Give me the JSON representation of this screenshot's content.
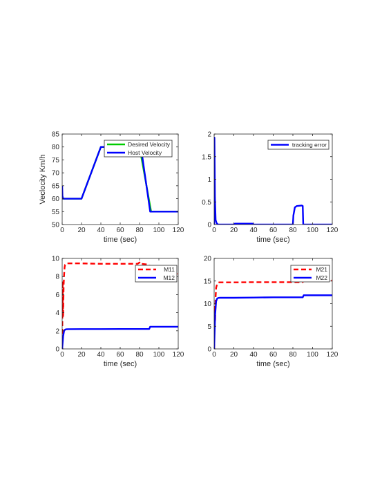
{
  "chart_data": [
    {
      "type": "line",
      "title": "",
      "xlabel": "time (sec)",
      "ylabel": "Veclocity Km/h",
      "xlim": [
        0,
        120
      ],
      "ylim": [
        50,
        85
      ],
      "xticks": [
        0,
        20,
        40,
        60,
        80,
        100,
        120
      ],
      "yticks": [
        50,
        55,
        60,
        65,
        70,
        75,
        80,
        85
      ],
      "grid": false,
      "legend_position": "top-right",
      "series": [
        {
          "name": "Desired Velocity",
          "color": "#00cc00",
          "style": "solid",
          "x": [
            0,
            20,
            40,
            43,
            80,
            92,
            120
          ],
          "y": [
            60,
            60,
            80,
            80,
            80,
            55,
            55
          ]
        },
        {
          "name": "Host Velocity",
          "color": "#0000ff",
          "style": "solid",
          "x": [
            0,
            0.3,
            1,
            2,
            20,
            40,
            43,
            80,
            82,
            91,
            120
          ],
          "y": [
            65,
            61,
            60,
            60,
            60,
            80,
            80,
            80,
            78.5,
            55,
            55
          ]
        }
      ]
    },
    {
      "type": "line",
      "title": "",
      "xlabel": "time (sec)",
      "ylabel": "",
      "xlim": [
        0,
        120
      ],
      "ylim": [
        0,
        2
      ],
      "xticks": [
        0,
        20,
        40,
        60,
        80,
        100,
        120
      ],
      "yticks": [
        0,
        0.5,
        1,
        1.5,
        2
      ],
      "grid": false,
      "legend_position": "top-right",
      "series": [
        {
          "name": "tracking error",
          "color": "#0000ff",
          "style": "solid",
          "x": [
            0,
            0.3,
            0.8,
            1.5,
            2.5,
            4,
            20,
            21,
            39,
            40,
            80,
            80.5,
            82,
            84,
            89,
            90,
            90.5,
            120
          ],
          "y": [
            0,
            1.92,
            0.6,
            0.1,
            0.03,
            0,
            0,
            0.02,
            0.02,
            0,
            0,
            0.2,
            0.38,
            0.41,
            0.42,
            0.41,
            0,
            0
          ]
        }
      ]
    },
    {
      "type": "line",
      "title": "",
      "xlabel": "time (sec)",
      "ylabel": "",
      "xlim": [
        0,
        120
      ],
      "ylim": [
        0,
        10
      ],
      "xticks": [
        0,
        20,
        40,
        60,
        80,
        100,
        120
      ],
      "yticks": [
        0,
        2,
        4,
        6,
        8,
        10
      ],
      "grid": false,
      "legend_position": "top-right",
      "series": [
        {
          "name": "M11",
          "color": "#ff0000",
          "style": "dashed",
          "x": [
            0,
            0.5,
            1,
            1.5,
            2,
            2.5,
            3,
            4,
            5,
            20,
            40,
            60,
            78,
            80,
            81,
            82,
            90,
            91,
            100,
            120
          ],
          "y": [
            0,
            7.5,
            3.5,
            7,
            8.2,
            9,
            9.3,
            9.42,
            9.45,
            9.45,
            9.4,
            9.4,
            9.4,
            9.55,
            9.35,
            9.4,
            9.3,
            8.4,
            8.35,
            8.3
          ]
        },
        {
          "name": "M12",
          "color": "#0000ff",
          "style": "solid",
          "x": [
            0,
            1,
            2,
            3,
            4,
            6,
            20,
            40,
            60,
            80,
            90,
            91,
            100,
            120
          ],
          "y": [
            0,
            1.4,
            2.0,
            2.13,
            2.17,
            2.18,
            2.19,
            2.19,
            2.2,
            2.2,
            2.2,
            2.45,
            2.45,
            2.45
          ]
        }
      ]
    },
    {
      "type": "line",
      "title": "",
      "xlabel": "time (sec)",
      "ylabel": "",
      "xlim": [
        0,
        120
      ],
      "ylim": [
        0,
        20
      ],
      "xticks": [
        0,
        20,
        40,
        60,
        80,
        100,
        120
      ],
      "yticks": [
        0,
        5,
        10,
        15,
        20
      ],
      "grid": false,
      "legend_position": "top-right",
      "series": [
        {
          "name": "M21",
          "color": "#ff0000",
          "style": "dashed",
          "x": [
            0,
            0.5,
            1,
            1.5,
            2,
            3,
            4,
            5,
            20,
            40,
            60,
            80,
            90,
            91,
            100,
            120
          ],
          "y": [
            0,
            9.5,
            6,
            11.5,
            13.5,
            14.3,
            14.6,
            14.7,
            14.7,
            14.75,
            14.75,
            14.75,
            14.75,
            15.2,
            15.15,
            15.1
          ]
        },
        {
          "name": "M22",
          "color": "#0000ff",
          "style": "solid",
          "x": [
            0,
            1,
            2,
            3,
            4,
            6,
            20,
            40,
            60,
            80,
            90,
            91,
            100,
            120
          ],
          "y": [
            0,
            7.5,
            10.5,
            11.1,
            11.25,
            11.3,
            11.3,
            11.35,
            11.4,
            11.4,
            11.4,
            11.85,
            11.85,
            11.85
          ]
        }
      ]
    }
  ]
}
